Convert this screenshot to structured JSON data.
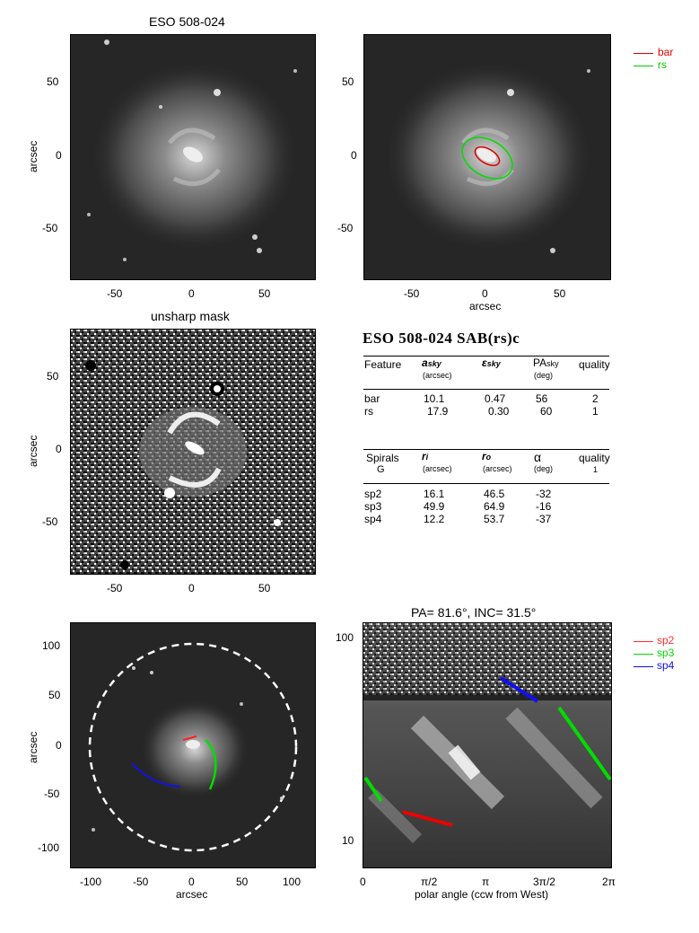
{
  "panels": {
    "top_left": {
      "title": "ESO 508-024",
      "ylabel": "arcsec",
      "xticks": [
        "-50",
        "0",
        "50"
      ],
      "yticks": [
        "50",
        "0",
        "-50"
      ]
    },
    "top_right": {
      "xlabel": "arcsec",
      "xticks": [
        "-50",
        "0",
        "50"
      ],
      "yticks": [
        "50",
        "0",
        "-50"
      ]
    },
    "middle_left": {
      "title": "unsharp mask",
      "ylabel": "arcsec",
      "xticks": [
        "-50",
        "0",
        "50"
      ],
      "yticks": [
        "50",
        "0",
        "-50"
      ]
    },
    "bottom_left": {
      "xlabel": "arcsec",
      "ylabel": "arcsec",
      "xticks": [
        "-100",
        "-50",
        "0",
        "50",
        "100"
      ],
      "yticks": [
        "100",
        "50",
        "0",
        "-50",
        "-100"
      ]
    },
    "bottom_right": {
      "title": "PA= 81.6°, INC= 31.5°",
      "xlabel": "polar angle (ccw from West)",
      "xticks": [
        "0",
        "π/2",
        "π",
        "3π/2",
        "2π"
      ],
      "yticks": [
        "100",
        "10"
      ]
    }
  },
  "legend_top": [
    {
      "label": "bar",
      "color": "#e00000"
    },
    {
      "label": "rs",
      "color": "#00cc00"
    }
  ],
  "legend_bottom": [
    {
      "label": "sp2",
      "color": "#ff3030"
    },
    {
      "label": "sp3",
      "color": "#00dd00"
    },
    {
      "label": "sp4",
      "color": "#1010ee"
    }
  ],
  "table": {
    "title": "ESO 508-024  SAB(rs)c",
    "head1": {
      "c1": "Feature",
      "c2": "a",
      "c2sub": "sky",
      "c2unit": "(arcsec)",
      "c3": "ε",
      "c3sub": "sky",
      "c4": "PA",
      "c4sub": "sky",
      "c4unit": "(deg)",
      "c5": "quality"
    },
    "rows1": [
      {
        "name": "bar",
        "a": "10.1",
        "e": "0.47",
        "pa": "56",
        "q": "2"
      },
      {
        "name": "rs",
        "a": "17.9",
        "e": "0.30",
        "pa": "60",
        "q": "1"
      }
    ],
    "head2": {
      "c1": "Spirals",
      "c1b": "G",
      "c2": "r",
      "c2sub": "i",
      "c2unit": "(arcsec)",
      "c3": "r",
      "c3sub": "o",
      "c3unit": "(arcsec)",
      "c4": "α",
      "c4unit": "(deg)",
      "c5": "quality",
      "c5b": "1"
    },
    "rows2": [
      {
        "name": "sp2",
        "ri": "16.1",
        "ro": "46.5",
        "alpha": "-32"
      },
      {
        "name": "sp3",
        "ri": "49.9",
        "ro": "64.9",
        "alpha": "-16"
      },
      {
        "name": "sp4",
        "ri": "12.2",
        "ro": "53.7",
        "alpha": "-37"
      }
    ]
  }
}
